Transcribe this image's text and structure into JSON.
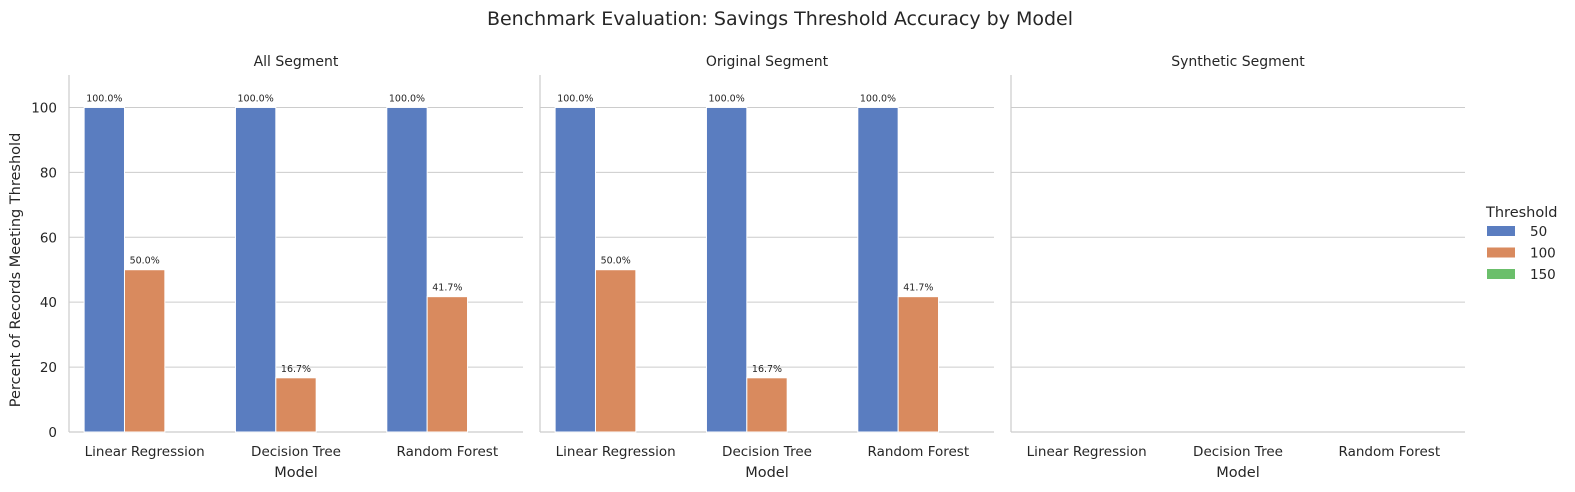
{
  "chart_data": {
    "type": "bar",
    "title": "Benchmark Evaluation: Savings Threshold Accuracy by Model",
    "ylabel": "Percent of Records Meeting Threshold",
    "xlabel": "Model",
    "ylim": [
      0,
      110
    ],
    "yticks": [
      0,
      20,
      40,
      60,
      80,
      100
    ],
    "grid": "horizontal",
    "categories": [
      "Linear Regression",
      "Decision Tree",
      "Random Forest"
    ],
    "legend": {
      "title": "Threshold",
      "placement": "right",
      "entries": [
        {
          "label": "50",
          "color": "#5a7dc0"
        },
        {
          "label": "100",
          "color": "#d98a5e"
        },
        {
          "label": "150",
          "color": "#6bbf6b"
        }
      ]
    },
    "panels": [
      {
        "title": "All Segment",
        "series": [
          {
            "name": "50",
            "values": [
              100.0,
              100.0,
              100.0
            ],
            "labels": [
              "100.0%",
              "100.0%",
              "100.0%"
            ]
          },
          {
            "name": "100",
            "values": [
              50.0,
              16.7,
              41.7
            ],
            "labels": [
              "50.0%",
              "16.7%",
              "41.7%"
            ]
          },
          {
            "name": "150",
            "values": [
              null,
              null,
              null
            ],
            "labels": [
              "",
              "",
              ""
            ]
          }
        ]
      },
      {
        "title": "Original Segment",
        "series": [
          {
            "name": "50",
            "values": [
              100.0,
              100.0,
              100.0
            ],
            "labels": [
              "100.0%",
              "100.0%",
              "100.0%"
            ]
          },
          {
            "name": "100",
            "values": [
              50.0,
              16.7,
              41.7
            ],
            "labels": [
              "50.0%",
              "16.7%",
              "41.7%"
            ]
          },
          {
            "name": "150",
            "values": [
              null,
              null,
              null
            ],
            "labels": [
              "",
              "",
              ""
            ]
          }
        ]
      },
      {
        "title": "Synthetic Segment",
        "series": [
          {
            "name": "50",
            "values": [
              null,
              null,
              null
            ],
            "labels": [
              "",
              "",
              ""
            ]
          },
          {
            "name": "100",
            "values": [
              null,
              null,
              null
            ],
            "labels": [
              "",
              "",
              ""
            ]
          },
          {
            "name": "150",
            "values": [
              null,
              null,
              null
            ],
            "labels": [
              "",
              "",
              ""
            ]
          }
        ]
      }
    ]
  }
}
